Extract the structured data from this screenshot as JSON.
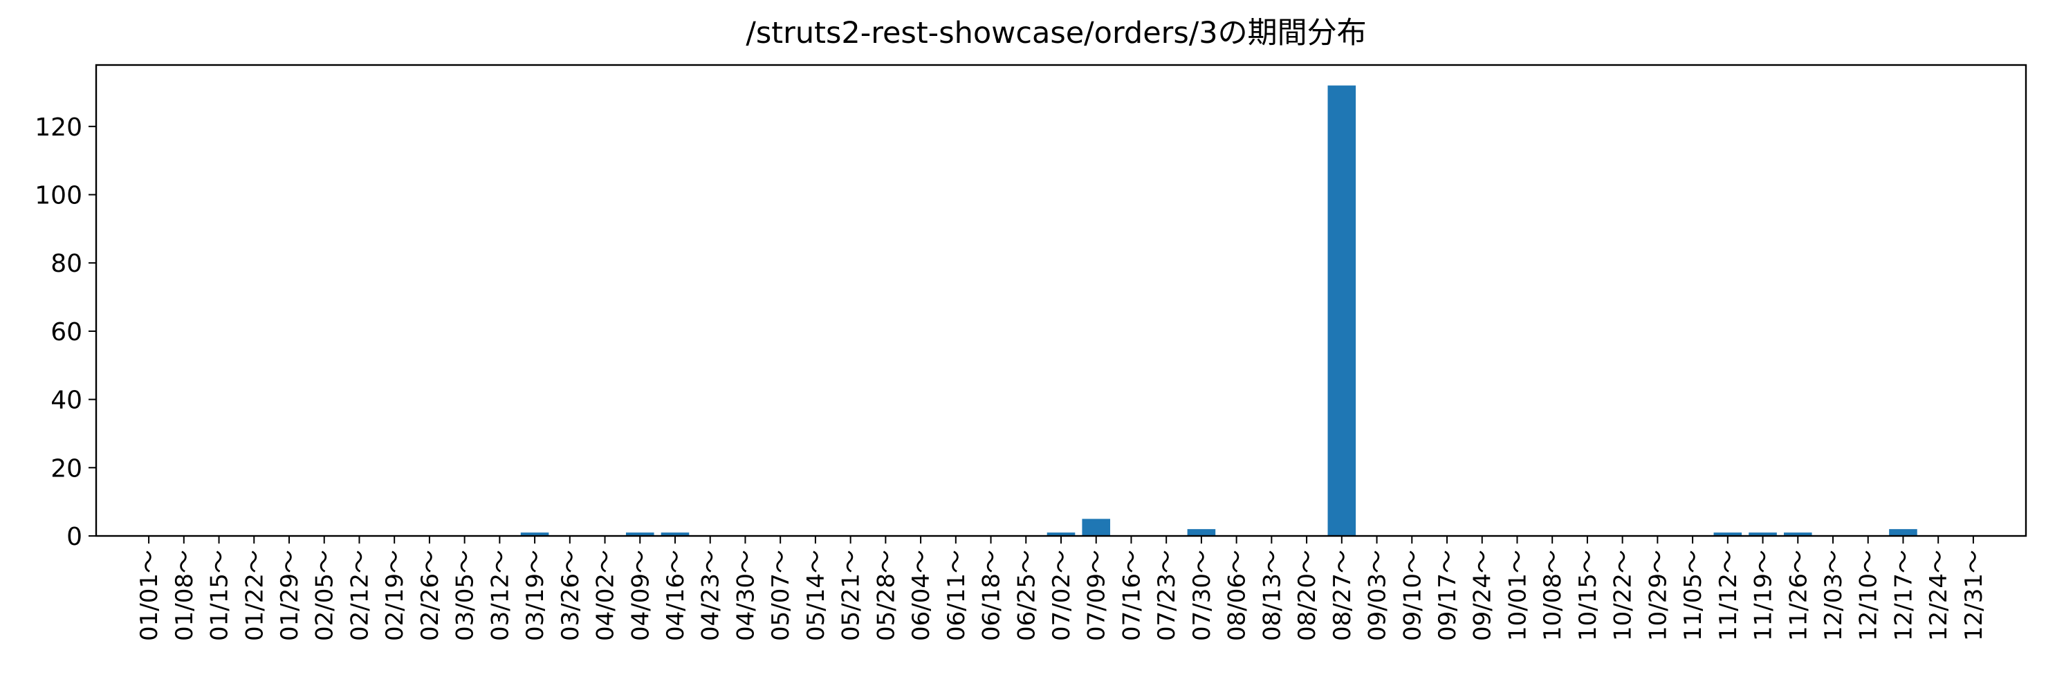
{
  "chart_data": {
    "type": "bar",
    "title": "/struts2-rest-showcase/orders/3の期間分布",
    "xlabel": "",
    "ylabel": "",
    "ylim": [
      0,
      138
    ],
    "yticks": [
      0,
      20,
      40,
      60,
      80,
      100,
      120
    ],
    "grid": false,
    "bar_color": "#1f77b4",
    "categories": [
      "01/01～",
      "01/08～",
      "01/15～",
      "01/22～",
      "01/29～",
      "02/05～",
      "02/12～",
      "02/19～",
      "02/26～",
      "03/05～",
      "03/12～",
      "03/19～",
      "03/26～",
      "04/02～",
      "04/09～",
      "04/16～",
      "04/23～",
      "04/30～",
      "05/07～",
      "05/14～",
      "05/21～",
      "05/28～",
      "06/04～",
      "06/11～",
      "06/18～",
      "06/25～",
      "07/02～",
      "07/09～",
      "07/16～",
      "07/23～",
      "07/30～",
      "08/06～",
      "08/13～",
      "08/20～",
      "08/27～",
      "09/03～",
      "09/10～",
      "09/17～",
      "09/24～",
      "10/01～",
      "10/08～",
      "10/15～",
      "10/22～",
      "10/29～",
      "11/05～",
      "11/12～",
      "11/19～",
      "11/26～",
      "12/03～",
      "12/10～",
      "12/17～",
      "12/24～",
      "12/31～"
    ],
    "values": [
      0,
      0,
      0,
      0,
      0,
      0,
      0,
      0,
      0,
      0,
      0,
      1,
      0,
      0,
      1,
      1,
      0,
      0,
      0,
      0,
      0,
      0,
      0,
      0,
      0,
      0,
      1,
      5,
      0,
      0,
      2,
      0,
      0,
      0,
      132,
      0,
      0,
      0,
      0,
      0,
      0,
      0,
      0,
      0,
      0,
      1,
      1,
      1,
      0,
      0,
      2,
      0,
      0
    ]
  }
}
